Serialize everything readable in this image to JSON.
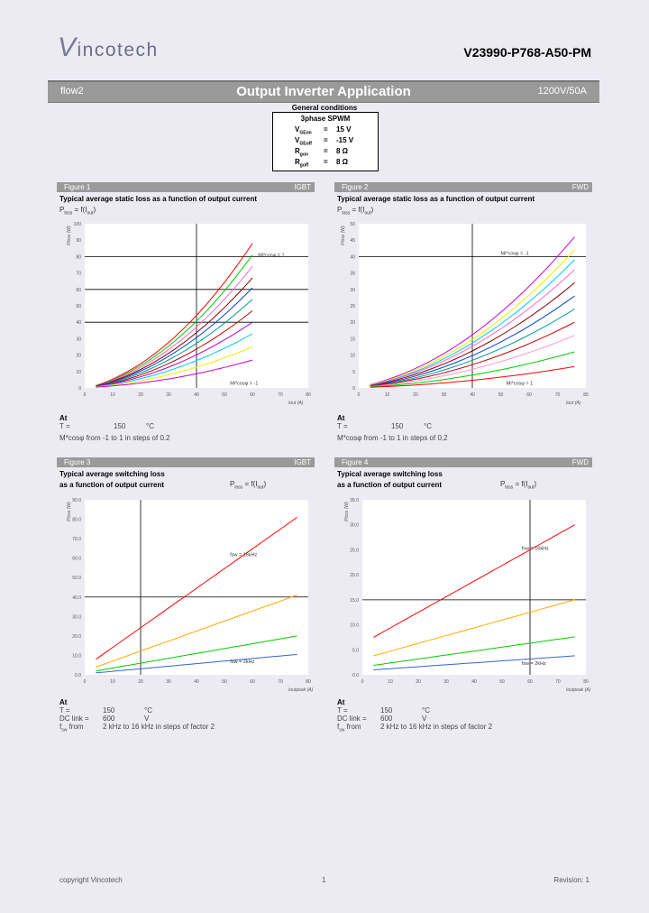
{
  "header": {
    "logo": "Vincotech",
    "logo_first": "V",
    "logo_rest": "incotech",
    "part_number": "V23990-P768-A50-PM"
  },
  "banner": {
    "left": "flow2",
    "center": "Output Inverter Application",
    "right": "1200V/50A"
  },
  "general_conditions": {
    "title": "General conditions",
    "header": "3phase SPWM",
    "rows": [
      {
        "sym": "V",
        "sub": "GEon",
        "eq": "=",
        "val": "15 V"
      },
      {
        "sym": "V",
        "sub": "GEoff",
        "eq": "=",
        "val": "-15 V"
      },
      {
        "sym": "R",
        "sub": "gon",
        "eq": "=",
        "val": "8 Ω"
      },
      {
        "sym": "R",
        "sub": "goff",
        "eq": "=",
        "val": "8 Ω"
      }
    ]
  },
  "figures": [
    {
      "label": "Figure 1",
      "tag": "IGBT",
      "title1": "Typical average static loss as a function of output current",
      "title2": "",
      "func": "P",
      "func_sub": "loss",
      "func_rest": " = f(I",
      "func_sub2": "out",
      "func_end": ")"
    },
    {
      "label": "Figure 2",
      "tag": "FWD",
      "title1": "Typical average static loss as a function of output current",
      "title2": "",
      "func": "P",
      "func_sub": "loss",
      "func_rest": " = f(I",
      "func_sub2": "out",
      "func_end": ")"
    },
    {
      "label": "Figure 3",
      "tag": "IGBT",
      "title1": "Typical average switching loss",
      "title2": "as a function of output current",
      "func": "P",
      "func_sub": "loss",
      "func_rest": " = f(I",
      "func_sub2": "out",
      "func_end": ")"
    },
    {
      "label": "Figure 4",
      "tag": "FWD",
      "title1": "Typical average switching loss",
      "title2": "as a function of output current",
      "func": "P",
      "func_sub": "loss",
      "func_rest": " = f(I",
      "func_sub2": "out",
      "func_end": ")"
    }
  ],
  "notes_static": {
    "at": "At",
    "t_label": "T =",
    "t_val": "150",
    "t_unit": "°C",
    "line2": "M*cosφ from -1 to 1 in steps of 0.2",
    "line2_b": "M*cosφ from -1 to 1 in steps of 0,2"
  },
  "notes_switch": {
    "at": "At",
    "t_label": "T =",
    "t_val": "150",
    "t_unit": "°C",
    "dc_label": "DC link =",
    "dc_val": "600",
    "dc_unit": "V",
    "f_label": "f",
    "f_sub": "sw",
    "f_from": " from",
    "f_text": "2 kHz to 16 kHz in steps of factor 2"
  },
  "footer": {
    "left": "copyright Vincotech",
    "center": "1",
    "right": "Revision: 1"
  },
  "chart_data": [
    {
      "type": "line",
      "title": "Typical average static loss as a function of output current (IGBT)",
      "xlabel": "Iout (A)",
      "ylabel": "Ploss (W)",
      "xlim": [
        0,
        80
      ],
      "ylim": [
        0,
        100
      ],
      "xticks": [
        "0",
        "10",
        "20",
        "30",
        "40",
        "50",
        "60",
        "70",
        "80"
      ],
      "yticks": [
        "0",
        "10",
        "20",
        "30",
        "40",
        "50",
        "60",
        "70",
        "80",
        "90",
        "100"
      ],
      "annotations": [
        "Mi*cosφ = 1",
        "Mi*cosφ = -1"
      ],
      "series": [
        {
          "name": "Mi*cosφ = 1",
          "color": "#ff0000",
          "x": [
            4,
            60
          ],
          "y": [
            1.5,
            88
          ]
        },
        {
          "name": "Mi*cosφ = 0.8",
          "color": "#00cc00",
          "x": [
            4,
            60
          ],
          "y": [
            1.4,
            81
          ]
        },
        {
          "name": "Mi*cosφ = 0.6",
          "color": "#ff66cc",
          "x": [
            4,
            60
          ],
          "y": [
            1.3,
            74
          ]
        },
        {
          "name": "Mi*cosφ = 0.4",
          "color": "#8b0000",
          "x": [
            4,
            60
          ],
          "y": [
            1.2,
            67
          ]
        },
        {
          "name": "Mi*cosφ = 0.2",
          "color": "#0044cc",
          "x": [
            4,
            60
          ],
          "y": [
            1.1,
            61
          ]
        },
        {
          "name": "Mi*cosφ = 0",
          "color": "#009999",
          "x": [
            4,
            60
          ],
          "y": [
            1.0,
            54
          ]
        },
        {
          "name": "Mi*cosφ = -0.2",
          "color": "#cc0000",
          "x": [
            4,
            60
          ],
          "y": [
            0.9,
            47
          ]
        },
        {
          "name": "Mi*cosφ = -0.4",
          "color": "#aa00cc",
          "x": [
            4,
            60
          ],
          "y": [
            0.8,
            40
          ]
        },
        {
          "name": "Mi*cosφ = -0.6",
          "color": "#00ccee",
          "x": [
            4,
            60
          ],
          "y": [
            0.7,
            33
          ]
        },
        {
          "name": "Mi*cosφ = -0.8",
          "color": "#eeee00",
          "x": [
            4,
            60
          ],
          "y": [
            0.6,
            25
          ]
        },
        {
          "name": "Mi*cosφ = -1",
          "color": "#cc00cc",
          "x": [
            4,
            60
          ],
          "y": [
            0.5,
            17
          ]
        }
      ]
    },
    {
      "type": "line",
      "title": "Typical average static loss as a function of output current (FWD)",
      "xlabel": "Iout (A)",
      "ylabel": "Ploss (W)",
      "xlim": [
        0,
        80
      ],
      "ylim": [
        0,
        50
      ],
      "xticks": [
        "0",
        "10",
        "20",
        "30",
        "40",
        "50",
        "60",
        "70",
        "80"
      ],
      "yticks": [
        "0",
        "5",
        "10",
        "15",
        "20",
        "25",
        "30",
        "35",
        "40",
        "45",
        "50"
      ],
      "annotations": [
        "Mi*cosφ = -1",
        "Mi*cosφ = 1"
      ],
      "series": [
        {
          "name": "Mi*cosφ = -1",
          "color": "#cc00cc",
          "x": [
            4,
            76
          ],
          "y": [
            1.0,
            46
          ]
        },
        {
          "name": "Mi*cosφ = -0.8",
          "color": "#eeee00",
          "x": [
            4,
            76
          ],
          "y": [
            0.9,
            42
          ]
        },
        {
          "name": "Mi*cosφ = -0.6",
          "color": "#00ccee",
          "x": [
            4,
            76
          ],
          "y": [
            0.8,
            39
          ]
        },
        {
          "name": "Mi*cosφ = -0.4",
          "color": "#ff66cc",
          "x": [
            4,
            76
          ],
          "y": [
            0.8,
            36
          ]
        },
        {
          "name": "Mi*cosφ = -0.2",
          "color": "#8b0000",
          "x": [
            4,
            76
          ],
          "y": [
            0.7,
            32
          ]
        },
        {
          "name": "Mi*cosφ = 0",
          "color": "#0044cc",
          "x": [
            4,
            76
          ],
          "y": [
            0.6,
            28
          ]
        },
        {
          "name": "Mi*cosφ = 0.2",
          "color": "#009999",
          "x": [
            4,
            76
          ],
          "y": [
            0.5,
            24
          ]
        },
        {
          "name": "Mi*cosφ = 0.4",
          "color": "#cc0000",
          "x": [
            4,
            76
          ],
          "y": [
            0.5,
            20
          ]
        },
        {
          "name": "Mi*cosφ = 0.6",
          "color": "#ff99cc",
          "x": [
            4,
            76
          ],
          "y": [
            0.4,
            16
          ]
        },
        {
          "name": "Mi*cosφ = 0.8",
          "color": "#00cc00",
          "x": [
            4,
            76
          ],
          "y": [
            0.3,
            11
          ]
        },
        {
          "name": "Mi*cosφ = 1",
          "color": "#ff0000",
          "x": [
            4,
            76
          ],
          "y": [
            0.2,
            6.5
          ]
        }
      ]
    },
    {
      "type": "line",
      "title": "Typical average switching loss as a function of output current (IGBT)",
      "xlabel": "Ioutpeak (A)",
      "ylabel": "Ploss (W)",
      "xlim": [
        0,
        80
      ],
      "ylim": [
        0,
        90
      ],
      "xticks": [
        "0",
        "10",
        "20",
        "30",
        "40",
        "50",
        "60",
        "70",
        "80"
      ],
      "yticks": [
        "0.0",
        "10.0",
        "20.0",
        "30.0",
        "40.0",
        "50.0",
        "60.0",
        "70.0",
        "80.0",
        "90.0"
      ],
      "annotations": [
        "fsw = 16kHz",
        "fsw = 2kHz"
      ],
      "series": [
        {
          "name": "fsw = 16kHz",
          "color": "#ff0000",
          "x": [
            4,
            76
          ],
          "y": [
            8,
            81
          ]
        },
        {
          "name": "fsw = 8kHz",
          "color": "#ffaa00",
          "x": [
            4,
            76
          ],
          "y": [
            4,
            41
          ]
        },
        {
          "name": "fsw = 4kHz",
          "color": "#00cc00",
          "x": [
            4,
            76
          ],
          "y": [
            2,
            20
          ]
        },
        {
          "name": "fsw = 2kHz",
          "color": "#3366cc",
          "x": [
            4,
            76
          ],
          "y": [
            1,
            10.5
          ]
        }
      ]
    },
    {
      "type": "line",
      "title": "Typical average switching loss as a function of output current (FWD)",
      "xlabel": "Ioutpeak (A)",
      "ylabel": "Ploss (W)",
      "xlim": [
        0,
        80
      ],
      "ylim": [
        0,
        35
      ],
      "xticks": [
        "0",
        "10",
        "20",
        "30",
        "40",
        "50",
        "60",
        "70",
        "80"
      ],
      "yticks": [
        "0.0",
        "5.0",
        "10.0",
        "15.0",
        "20.0",
        "25.0",
        "30.0",
        "35.0"
      ],
      "annotations": [
        "fsw = 16kHz",
        "fsw = 2kHz"
      ],
      "series": [
        {
          "name": "fsw = 16kHz",
          "color": "#ff0000",
          "x": [
            4,
            76
          ],
          "y": [
            7.5,
            30
          ]
        },
        {
          "name": "fsw = 8kHz",
          "color": "#ffaa00",
          "x": [
            4,
            76
          ],
          "y": [
            3.8,
            15
          ]
        },
        {
          "name": "fsw = 4kHz",
          "color": "#00cc00",
          "x": [
            4,
            76
          ],
          "y": [
            1.9,
            7.6
          ]
        },
        {
          "name": "fsw = 2kHz",
          "color": "#3366cc",
          "x": [
            4,
            76
          ],
          "y": [
            1.0,
            3.8
          ]
        }
      ]
    }
  ]
}
